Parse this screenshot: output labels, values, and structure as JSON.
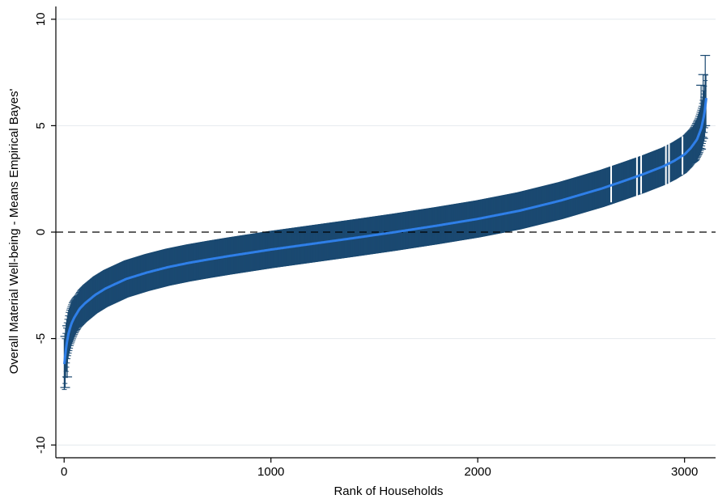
{
  "chart_data": {
    "type": "line",
    "title": "",
    "xlabel": "Rank of Households",
    "ylabel": "Overall Material Well-being - Means Empirical Bayes'",
    "xlim": [
      -40,
      3150
    ],
    "ylim": [
      -10.6,
      10.6
    ],
    "x_ticks": [
      0,
      1000,
      2000,
      3000
    ],
    "y_ticks": [
      -10,
      -5,
      0,
      5,
      10
    ],
    "grid": "horizontal",
    "reference_line": {
      "y": 0,
      "style": "dashed"
    },
    "error_bar_color": "#1a4971",
    "point_color": "#2f7fe8",
    "band_half_width": 0.85,
    "series": [
      {
        "x": [
          1,
          10,
          20,
          35,
          50,
          75,
          100,
          150,
          200,
          300,
          400,
          500,
          600,
          700,
          800,
          900,
          1000,
          1200,
          1400,
          1600,
          1800,
          2000,
          2200,
          2400,
          2600,
          2700,
          2800,
          2900,
          2950,
          3000,
          3030,
          3060,
          3080,
          3095,
          3105
        ],
        "y": [
          -6.2,
          -5.4,
          -4.8,
          -4.3,
          -4.0,
          -3.6,
          -3.35,
          -2.95,
          -2.65,
          -2.2,
          -1.9,
          -1.65,
          -1.45,
          -1.28,
          -1.12,
          -0.97,
          -0.82,
          -0.55,
          -0.28,
          0.0,
          0.3,
          0.62,
          1.0,
          1.48,
          2.05,
          2.38,
          2.72,
          3.1,
          3.35,
          3.65,
          3.95,
          4.35,
          4.85,
          5.5,
          6.3
        ]
      }
    ],
    "outer_bars": [
      {
        "x": 5,
        "low": -7.3,
        "high": -4.9
      },
      {
        "x": 15,
        "low": -6.8,
        "high": -4.4
      },
      {
        "x": 3100,
        "low": 5.0,
        "high": 8.3
      },
      {
        "x": 3090,
        "low": 4.4,
        "high": 7.4
      },
      {
        "x": 3080,
        "low": 3.9,
        "high": 6.9
      }
    ],
    "gaps": [
      {
        "x": 2645,
        "low": 1.4,
        "high": 3.35
      },
      {
        "x": 2770,
        "low": 1.7,
        "high": 3.7
      },
      {
        "x": 2790,
        "low": 1.8,
        "high": 3.8
      },
      {
        "x": 2910,
        "low": 2.2,
        "high": 4.1
      },
      {
        "x": 2925,
        "low": 2.3,
        "high": 4.2
      },
      {
        "x": 2990,
        "low": 2.7,
        "high": 4.5
      }
    ]
  }
}
